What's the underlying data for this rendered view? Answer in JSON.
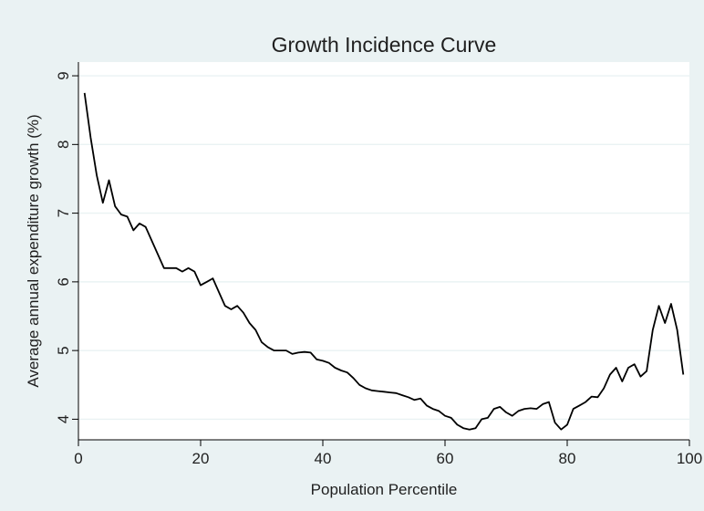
{
  "colors": {
    "background": "#eaf2f3",
    "plot_background": "#ffffff",
    "line": "#000000",
    "gridline": "#eaf2f3",
    "text": "#1f1f1f"
  },
  "chart_data": {
    "type": "line",
    "title": "Growth Incidence Curve",
    "xlabel": "Population Percentile",
    "ylabel": "Average annual expenditure growth (%)",
    "xlim": [
      0,
      100
    ],
    "ylim": [
      3.7,
      9.2
    ],
    "xticks": [
      0,
      20,
      40,
      60,
      80,
      100
    ],
    "yticks": [
      4,
      5,
      6,
      7,
      8,
      9
    ],
    "grid": true,
    "legend": false,
    "series": [
      {
        "x": [
          1,
          2,
          3,
          4,
          5,
          6,
          7,
          8,
          9,
          10,
          11,
          12,
          13,
          14,
          15,
          16,
          17,
          18,
          19,
          20,
          21,
          22,
          23,
          24,
          25,
          26,
          27,
          28,
          29,
          30,
          31,
          32,
          33,
          34,
          35,
          36,
          37,
          38,
          39,
          40,
          41,
          42,
          43,
          44,
          45,
          46,
          47,
          48,
          49,
          50,
          51,
          52,
          53,
          54,
          55,
          56,
          57,
          58,
          59,
          60,
          61,
          62,
          63,
          64,
          65,
          66,
          67,
          68,
          69,
          70,
          71,
          72,
          73,
          74,
          75,
          76,
          77,
          78,
          79,
          80,
          81,
          82,
          83,
          84,
          85,
          86,
          87,
          88,
          89,
          90,
          91,
          92,
          93,
          94,
          95,
          96,
          97,
          98,
          99
        ],
        "y": [
          8.75,
          8.1,
          7.55,
          7.15,
          7.48,
          7.1,
          6.98,
          6.95,
          6.75,
          6.85,
          6.8,
          6.6,
          6.4,
          6.2,
          6.2,
          6.2,
          6.15,
          6.2,
          6.15,
          5.95,
          6.0,
          6.05,
          5.85,
          5.65,
          5.6,
          5.65,
          5.55,
          5.4,
          5.3,
          5.12,
          5.05,
          5.0,
          5.0,
          5.0,
          4.95,
          4.97,
          4.98,
          4.97,
          4.87,
          4.85,
          4.82,
          4.75,
          4.71,
          4.68,
          4.6,
          4.5,
          4.45,
          4.42,
          4.41,
          4.4,
          4.39,
          4.38,
          4.35,
          4.32,
          4.28,
          4.3,
          4.2,
          4.15,
          4.12,
          4.05,
          4.02,
          3.92,
          3.87,
          3.85,
          3.87,
          4.0,
          4.02,
          4.15,
          4.18,
          4.1,
          4.05,
          4.12,
          4.15,
          4.16,
          4.15,
          4.22,
          4.25,
          3.95,
          3.85,
          3.92,
          4.15,
          4.2,
          4.25,
          4.33,
          4.32,
          4.45,
          4.65,
          4.75,
          4.55,
          4.75,
          4.8,
          4.62,
          4.7,
          5.3,
          5.65,
          5.4,
          5.68,
          5.3,
          4.65
        ]
      }
    ]
  }
}
